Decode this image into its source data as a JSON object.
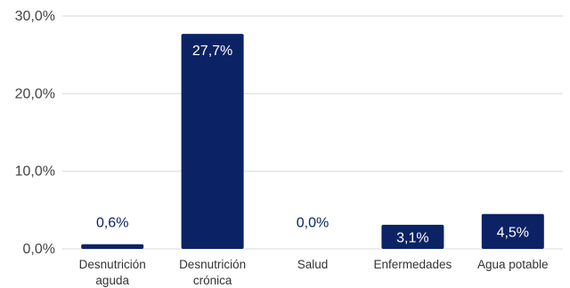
{
  "chart_data": {
    "type": "bar",
    "categories": [
      [
        "Desnutrición",
        "aguda"
      ],
      [
        "Desnutrición",
        "crónica"
      ],
      [
        "Salud"
      ],
      [
        "Enfermedades"
      ],
      [
        "Agua potable"
      ]
    ],
    "values": [
      0.6,
      27.7,
      0.0,
      3.1,
      4.5
    ],
    "data_labels": [
      "0,6%",
      "27,7%",
      "0,0%",
      "3,1%",
      "4,5%"
    ],
    "y_ticks": [
      {
        "value": 0,
        "label": "0,0%"
      },
      {
        "value": 10,
        "label": "10,0%"
      },
      {
        "value": 20,
        "label": "20,0%"
      },
      {
        "value": 30,
        "label": "30,0%"
      }
    ],
    "ylim": [
      0,
      30
    ],
    "grid": true,
    "legend": "none",
    "title": "",
    "xlabel": "",
    "ylabel": "",
    "colors": {
      "bar": "#0b2265",
      "label_inside": "#ffffff",
      "label_outside": "#0b2265"
    }
  }
}
